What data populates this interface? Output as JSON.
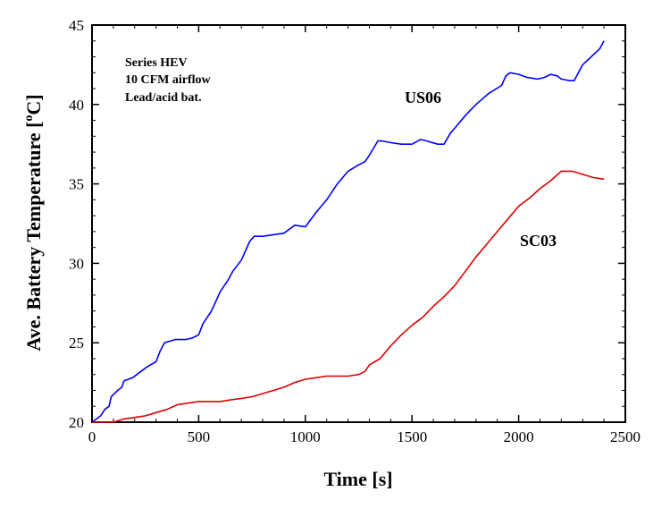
{
  "chart_data": {
    "type": "line",
    "title": "",
    "xlabel": "Time [s]",
    "ylabel_main": "Ave. Battery Temperature [",
    "ylabel_sup": "o",
    "ylabel_end": "C]",
    "xlim": [
      0,
      2500
    ],
    "ylim": [
      20,
      45
    ],
    "xticks": [
      0,
      500,
      1000,
      1500,
      2000,
      2500
    ],
    "yticks": [
      20,
      25,
      30,
      35,
      40,
      45
    ],
    "grid": false,
    "legend": "none",
    "annotation_lines": [
      "Series HEV",
      "10 CFM airflow",
      "Lead/acid bat."
    ],
    "series": [
      {
        "name": "US06",
        "color": "#0000ff",
        "x": [
          0,
          40,
          60,
          80,
          90,
          120,
          140,
          150,
          190,
          230,
          260,
          300,
          320,
          340,
          390,
          440,
          470,
          500,
          520,
          560,
          600,
          640,
          660,
          700,
          740,
          760,
          800,
          850,
          900,
          950,
          1000,
          1050,
          1100,
          1150,
          1200,
          1250,
          1280,
          1300,
          1340,
          1360,
          1400,
          1450,
          1500,
          1540,
          1570,
          1620,
          1650,
          1680,
          1700,
          1750,
          1800,
          1860,
          1920,
          1940,
          1960,
          2000,
          2040,
          2090,
          2120,
          2150,
          2180,
          2200,
          2240,
          2260,
          2300,
          2340,
          2380,
          2400
        ],
        "y": [
          20.0,
          20.4,
          20.8,
          21.0,
          21.6,
          22.0,
          22.2,
          22.6,
          22.8,
          23.2,
          23.5,
          23.8,
          24.5,
          25.0,
          25.2,
          25.2,
          25.3,
          25.5,
          26.2,
          27.0,
          28.2,
          29.0,
          29.5,
          30.2,
          31.4,
          31.7,
          31.7,
          31.8,
          31.9,
          32.4,
          32.3,
          33.2,
          34.0,
          35.0,
          35.8,
          36.2,
          36.4,
          36.8,
          37.7,
          37.7,
          37.6,
          37.5,
          37.5,
          37.8,
          37.7,
          37.5,
          37.5,
          38.2,
          38.5,
          39.3,
          40.0,
          40.7,
          41.2,
          41.8,
          42.0,
          41.9,
          41.7,
          41.6,
          41.7,
          41.9,
          41.8,
          41.6,
          41.5,
          41.5,
          42.5,
          43.0,
          43.5,
          44.0
        ]
      },
      {
        "name": "SC03",
        "color": "#dd0000",
        "x": [
          0,
          100,
          150,
          200,
          250,
          300,
          350,
          400,
          450,
          500,
          550,
          600,
          650,
          700,
          750,
          800,
          850,
          900,
          950,
          1000,
          1050,
          1100,
          1150,
          1200,
          1250,
          1280,
          1300,
          1350,
          1400,
          1450,
          1500,
          1550,
          1600,
          1650,
          1700,
          1750,
          1800,
          1850,
          1900,
          1950,
          2000,
          2050,
          2100,
          2150,
          2200,
          2250,
          2300,
          2350,
          2400
        ],
        "y": [
          20.0,
          20.0,
          20.2,
          20.3,
          20.4,
          20.6,
          20.8,
          21.1,
          21.2,
          21.3,
          21.3,
          21.3,
          21.4,
          21.5,
          21.6,
          21.8,
          22.0,
          22.2,
          22.5,
          22.7,
          22.8,
          22.9,
          22.9,
          22.9,
          23.0,
          23.2,
          23.6,
          24.0,
          24.8,
          25.5,
          26.1,
          26.6,
          27.3,
          27.9,
          28.6,
          29.5,
          30.4,
          31.2,
          32.0,
          32.8,
          33.6,
          34.1,
          34.7,
          35.2,
          35.8,
          35.8,
          35.6,
          35.4,
          35.3
        ]
      }
    ],
    "series_labels": [
      "US06",
      "SC03"
    ]
  }
}
